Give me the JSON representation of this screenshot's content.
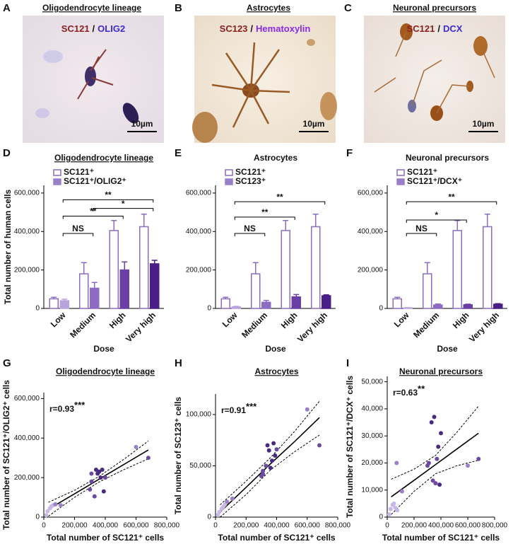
{
  "panels": [
    {
      "letter": "A",
      "title": "Oligodendrocyte lineage",
      "stain": {
        "marker": "SC121",
        "separator": "/",
        "counterstain": "OLIG2"
      },
      "scale_bar": "10µm"
    },
    {
      "letter": "B",
      "title": "Astrocytes",
      "stain": {
        "marker": "SC123",
        "separator": "/",
        "counterstain": "Hematoxylin"
      },
      "scale_bar": "10µm"
    },
    {
      "letter": "C",
      "title": "Neuronal precursors",
      "stain": {
        "marker": "SC121",
        "separator": "/",
        "counterstain": "DCX"
      },
      "scale_bar": "10µm"
    }
  ],
  "chart_data": [
    {
      "type": "bar",
      "letter": "D",
      "title": "Oligodendrocyte lineage",
      "ylabel": "Total number of human cells",
      "xlabel": "Dose",
      "categories": [
        "Low",
        "Medium",
        "High",
        "Very high"
      ],
      "series": [
        {
          "name": "SC121⁺",
          "color": "#8c6cc0",
          "fill": "#ffffff",
          "values": [
            50000,
            180000,
            405000,
            425000
          ],
          "errors": [
            8000,
            58000,
            52000,
            65000
          ]
        },
        {
          "name": "SC121⁺/OLIG2⁺",
          "color": "#9a7fcb",
          "colors": [
            "#b9a3dd",
            "#8e6bc2",
            "#6a3fa5",
            "#4b1e87"
          ],
          "values": [
            40000,
            105000,
            200000,
            232000
          ],
          "errors": [
            8000,
            30000,
            42000,
            18000
          ]
        }
      ],
      "ylim": [
        0,
        640000
      ],
      "yticks": [
        {
          "value": 0,
          "label": "0"
        },
        {
          "value": 200000,
          "label": "200,000"
        },
        {
          "value": 400000,
          "label": "400,000"
        },
        {
          "value": 600000,
          "label": "600,000"
        }
      ],
      "brackets": [
        {
          "label": "NS",
          "from": 0,
          "to": 1,
          "y": 390000
        },
        {
          "label": "**",
          "from": 0,
          "to": 2,
          "y": 480000
        },
        {
          "label": "*",
          "from": 1,
          "to": 3,
          "y": 520000
        },
        {
          "label": "**",
          "from": 0,
          "to": 3,
          "y": 565000
        }
      ]
    },
    {
      "type": "bar",
      "letter": "E",
      "title": "Astrocytes",
      "xlabel": "Dose",
      "categories": [
        "Low",
        "Medium",
        "High",
        "Very high"
      ],
      "series": [
        {
          "name": "SC121⁺",
          "color": "#8c6cc0",
          "fill": "#ffffff",
          "values": [
            50000,
            180000,
            405000,
            425000
          ],
          "errors": [
            8000,
            58000,
            52000,
            65000
          ]
        },
        {
          "name": "SC123⁺",
          "color": "#9a7fcb",
          "colors": [
            "#b9a3dd",
            "#8e6bc2",
            "#6a3fa5",
            "#4b1e87"
          ],
          "values": [
            8000,
            32000,
            60000,
            66000
          ],
          "errors": [
            3000,
            10000,
            12000,
            5000
          ]
        }
      ],
      "ylim": [
        0,
        640000
      ],
      "yticks": [
        {
          "value": 0,
          "label": "0"
        },
        {
          "value": 200000,
          "label": "200,000"
        },
        {
          "value": 400000,
          "label": "400,000"
        },
        {
          "value": 600000,
          "label": "600,000"
        }
      ],
      "brackets": [
        {
          "label": "NS",
          "from": 0,
          "to": 1,
          "y": 390000
        },
        {
          "label": "**",
          "from": 0,
          "to": 2,
          "y": 475000
        },
        {
          "label": "**",
          "from": 0,
          "to": 3,
          "y": 555000
        }
      ]
    },
    {
      "type": "bar",
      "letter": "F",
      "title": "Neuronal precursors",
      "xlabel": "Dose",
      "categories": [
        "Low",
        "Medium",
        "High",
        "Very high"
      ],
      "series": [
        {
          "name": "SC121⁺",
          "color": "#8c6cc0",
          "fill": "#ffffff",
          "values": [
            50000,
            180000,
            405000,
            425000
          ],
          "errors": [
            8000,
            58000,
            52000,
            65000
          ]
        },
        {
          "name": "SC121⁺/DCX⁺",
          "color": "#9a7fcb",
          "colors": [
            "#b9a3dd",
            "#8e6bc2",
            "#6a3fa5",
            "#4b1e87"
          ],
          "values": [
            3000,
            18000,
            19000,
            22000
          ],
          "errors": [
            1000,
            5000,
            3000,
            3000
          ]
        }
      ],
      "ylim": [
        0,
        640000
      ],
      "yticks": [
        {
          "value": 0,
          "label": "0"
        },
        {
          "value": 200000,
          "label": "200,000"
        },
        {
          "value": 400000,
          "label": "400,000"
        },
        {
          "value": 600000,
          "label": "600,000"
        }
      ],
      "brackets": [
        {
          "label": "NS",
          "from": 0,
          "to": 1,
          "y": 390000
        },
        {
          "label": "*",
          "from": 0,
          "to": 2,
          "y": 460000
        },
        {
          "label": "**",
          "from": 0,
          "to": 3,
          "y": 555000
        }
      ]
    },
    {
      "type": "scatter",
      "letter": "G",
      "title": "Oligodendrocyte lineage",
      "r_text": "r=0.93",
      "significance": "***",
      "xlabel": "Total number of SC121⁺ cells",
      "ylabel": "Total number of SC121⁺/OLIG2⁺ cells",
      "x": [
        15000,
        25000,
        40000,
        50000,
        60000,
        75000,
        110000,
        300000,
        310000,
        330000,
        340000,
        350000,
        370000,
        380000,
        390000,
        400000,
        310000,
        360000,
        600000,
        680000
      ],
      "values": [
        10000,
        30000,
        45000,
        55000,
        60000,
        65000,
        60000,
        140000,
        180000,
        105000,
        240000,
        220000,
        200000,
        240000,
        130000,
        200000,
        220000,
        230000,
        355000,
        300000
      ],
      "colors": [
        "#c9b8e6",
        "#c9b8e6",
        "#c9b8e6",
        "#c9b8e6",
        "#c9b8e6",
        "#9b7fc7",
        "#9b7fc7",
        "#6b4aa0",
        "#6b4aa0",
        "#6b4aa0",
        "#4a2a80",
        "#4a2a80",
        "#4a2a80",
        "#4a2a80",
        "#4a2a80",
        "#6b4aa0",
        "#6b4aa0",
        "#4a2a80",
        "#9b7fc7",
        "#6b4aa0"
      ],
      "fit": {
        "x": [
          30000,
          200000,
          360000,
          520000,
          680000
        ],
        "values": [
          40000,
          118000,
          192000,
          266000,
          340000
        ],
        "lower": [
          5000,
          100000,
          178000,
          240000,
          295000
        ],
        "upper": [
          75000,
          136000,
          206000,
          292000,
          385000
        ]
      },
      "xlim": [
        0,
        800000
      ],
      "xticks": [
        {
          "value": 0,
          "label": "0"
        },
        {
          "value": 200000,
          "label": "200,000"
        },
        {
          "value": 400000,
          "label": "400,000"
        },
        {
          "value": 600000,
          "label": "600,000"
        },
        {
          "value": 800000,
          "label": "800,000"
        }
      ],
      "ylim": [
        0,
        630000
      ],
      "yticks": [
        {
          "value": 0,
          "label": "0"
        },
        {
          "value": 200000,
          "label": "200,000"
        },
        {
          "value": 400000,
          "label": "400,000"
        },
        {
          "value": 600000,
          "label": "600,000"
        }
      ]
    },
    {
      "type": "scatter",
      "letter": "H",
      "title": "Astrocytes",
      "r_text": "r=0.91",
      "significance": "***",
      "xlabel": "Total number of SC121⁺ cells",
      "ylabel": "Total number of SC123⁺ cells",
      "x": [
        15000,
        25000,
        40000,
        50000,
        60000,
        75000,
        110000,
        300000,
        310000,
        330000,
        340000,
        350000,
        370000,
        380000,
        390000,
        400000,
        310000,
        360000,
        600000,
        680000
      ],
      "values": [
        2000,
        5000,
        8000,
        10000,
        12000,
        15000,
        18000,
        40000,
        45000,
        50000,
        70000,
        65000,
        55000,
        72000,
        60000,
        66000,
        42000,
        48000,
        105000,
        70000
      ],
      "colors": [
        "#c9b8e6",
        "#c9b8e6",
        "#c9b8e6",
        "#c9b8e6",
        "#c9b8e6",
        "#9b7fc7",
        "#9b7fc7",
        "#6b4aa0",
        "#6b4aa0",
        "#6b4aa0",
        "#4a2a80",
        "#4a2a80",
        "#4a2a80",
        "#4a2a80",
        "#4a2a80",
        "#6b4aa0",
        "#6b4aa0",
        "#4a2a80",
        "#9b7fc7",
        "#6b4aa0"
      ],
      "fit": {
        "x": [
          30000,
          200000,
          360000,
          520000,
          680000
        ],
        "values": [
          5000,
          29000,
          52000,
          74000,
          97000
        ],
        "lower": [
          0,
          22000,
          46000,
          64000,
          80000
        ],
        "upper": [
          12000,
          35000,
          58000,
          84000,
          113000
        ]
      },
      "xlim": [
        0,
        800000
      ],
      "xticks": [
        {
          "value": 0,
          "label": "0"
        },
        {
          "value": 200000,
          "label": "200,000"
        },
        {
          "value": 400000,
          "label": "400,000"
        },
        {
          "value": 600000,
          "label": "600,000"
        },
        {
          "value": 800000,
          "label": "800,000"
        }
      ],
      "ylim": [
        0,
        120000
      ],
      "yticks": [
        {
          "value": 0,
          "label": "0"
        },
        {
          "value": 50000,
          "label": "50,000"
        },
        {
          "value": 100000,
          "label": "100,000"
        }
      ]
    },
    {
      "type": "scatter",
      "letter": "I",
      "title": "Neuronal precursors",
      "r_text": "r=0.63",
      "significance": "**",
      "xlabel": "Total number of SC121⁺ cells",
      "ylabel": "Total number of SC121⁺/DCX⁺ cells",
      "x": [
        15000,
        25000,
        40000,
        50000,
        60000,
        75000,
        70000,
        110000,
        300000,
        310000,
        330000,
        340000,
        350000,
        370000,
        380000,
        390000,
        400000,
        360000,
        600000,
        680000
      ],
      "values": [
        1000,
        3000,
        4500,
        5000,
        3500,
        2500,
        20000,
        9500,
        19000,
        20000,
        35000,
        13500,
        37000,
        21500,
        26000,
        12000,
        31000,
        12500,
        19000,
        21500
      ],
      "colors": [
        "#c9b8e6",
        "#c9b8e6",
        "#c9b8e6",
        "#c9b8e6",
        "#c9b8e6",
        "#c9b8e6",
        "#9b7fc7",
        "#9b7fc7",
        "#6b4aa0",
        "#6b4aa0",
        "#4a2a80",
        "#6b4aa0",
        "#4a2a80",
        "#6b4aa0",
        "#4a2a80",
        "#4a2a80",
        "#4a2a80",
        "#6b4aa0",
        "#9b7fc7",
        "#6b4aa0"
      ],
      "fit": {
        "x": [
          30000,
          200000,
          360000,
          520000,
          680000
        ],
        "values": [
          7500,
          13600,
          19400,
          25200,
          31000
        ],
        "lower": [
          1000,
          9500,
          16000,
          19000,
          21000
        ],
        "upper": [
          14000,
          17700,
          22800,
          31400,
          41000
        ]
      },
      "xlim": [
        0,
        800000
      ],
      "xticks": [
        {
          "value": 0,
          "label": "0"
        },
        {
          "value": 200000,
          "label": "200,000"
        },
        {
          "value": 400000,
          "label": "400,000"
        },
        {
          "value": 600000,
          "label": "600,000"
        },
        {
          "value": 800000,
          "label": "800,000"
        }
      ],
      "ylim": [
        0,
        52000
      ],
      "yticks": [
        {
          "value": 0,
          "label": "0"
        },
        {
          "value": 10000,
          "label": "10,000"
        },
        {
          "value": 20000,
          "label": "20,000"
        },
        {
          "value": 30000,
          "label": "30,000"
        },
        {
          "value": 40000,
          "label": "40,000"
        },
        {
          "value": 50000,
          "label": "50,000"
        }
      ]
    }
  ]
}
